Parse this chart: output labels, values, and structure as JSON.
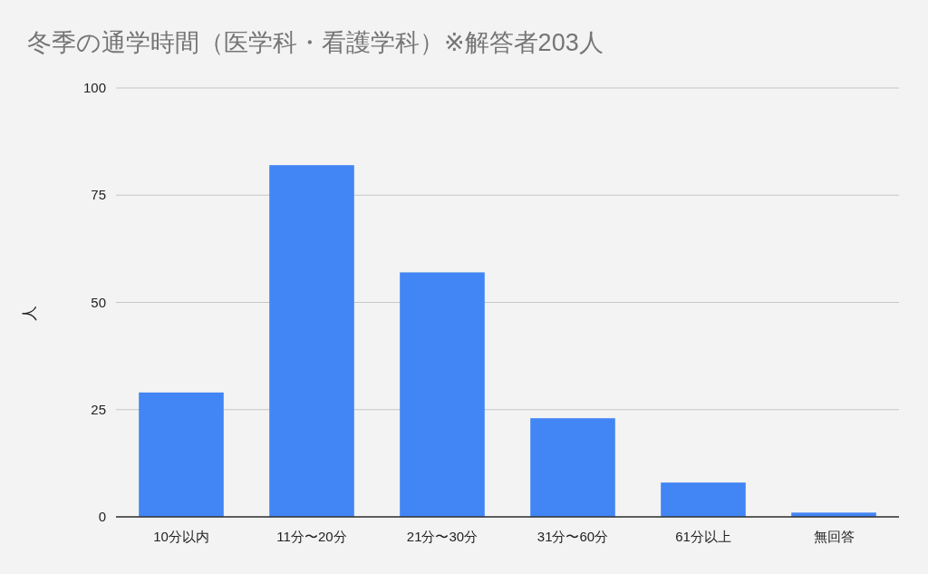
{
  "chart_data": {
    "type": "bar",
    "title": "冬季の通学時間（医学科・看護学科）※解答者203人",
    "ylabel": "人",
    "categories": [
      "10分以内",
      "11分〜20分",
      "21分〜30分",
      "31分〜60分",
      "61分以上",
      "無回答"
    ],
    "values": [
      29,
      82,
      57,
      23,
      8,
      1
    ],
    "color": "#4285f4",
    "ylim": [
      0,
      100
    ],
    "yticks": [
      0,
      25,
      50,
      75,
      100
    ],
    "grid": "y"
  }
}
